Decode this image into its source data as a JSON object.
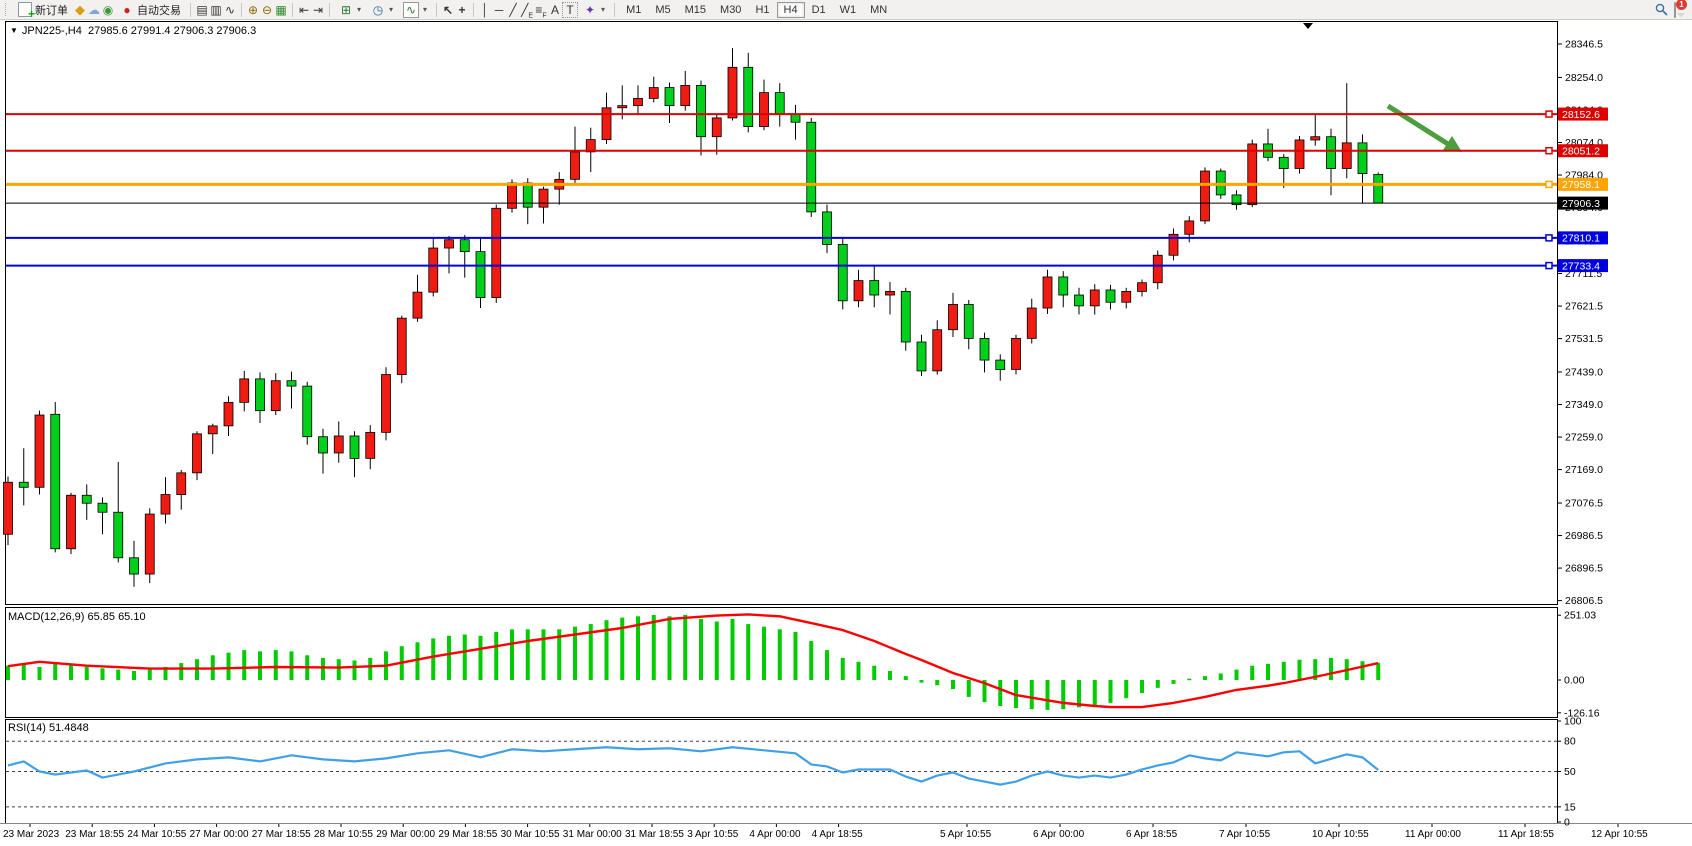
{
  "toolbar": {
    "new_order_label": "新订单",
    "autotrading_label": "自动交易",
    "timeframes": [
      "M1",
      "M5",
      "M15",
      "M30",
      "H1",
      "H4",
      "D1",
      "W1",
      "MN"
    ],
    "active_timeframe": "H4",
    "text_tool_label": "A",
    "label_tool_label": "T",
    "channel_tool_suffix": "E",
    "fibo_tool_suffix": "F",
    "notification_count": "1"
  },
  "chart": {
    "symbol_title": "JPN225-,H4",
    "ohlc_title": "27985.6 27991.4 27906.3 27906.3"
  },
  "indicators": {
    "macd_label": "MACD(12,26,9)",
    "macd_values": "65.85 65.10",
    "rsi_label": "RSI(14)",
    "rsi_value": "51.4848"
  },
  "chart_data": {
    "type": "candlestick",
    "symbol": "JPN225-",
    "period": "H4",
    "current_bar": {
      "open": 27985.6,
      "high": 27991.4,
      "low": 27906.3,
      "close": 27906.3
    },
    "bull_color": "#ee1c12",
    "bear_color": "#00d01c",
    "price_ticks": [
      "28346.5",
      "28254.0",
      "28164.0",
      "28074.0",
      "27984.0",
      "27894.0",
      "27801.5",
      "27711.5",
      "27621.5",
      "27531.5",
      "27439.0",
      "27349.0",
      "27259.0",
      "27169.0",
      "27076.5",
      "26986.5",
      "26896.5",
      "26806.5"
    ],
    "levels": [
      {
        "label": "28152.6",
        "price": 28152.6,
        "color": "#dd0000",
        "width": 2
      },
      {
        "label": "28051.2",
        "price": 28051.2,
        "color": "#dd0000",
        "width": 2
      },
      {
        "label": "27958.1",
        "price": 27958.1,
        "color": "#ffa500",
        "width": 3
      },
      {
        "label": "27906.3",
        "price": 27906.3,
        "color": "#000000",
        "width": 1
      },
      {
        "label": "27810.1",
        "price": 27810.1,
        "color": "#0000dd",
        "width": 2
      },
      {
        "label": "27733.4",
        "price": 27733.4,
        "color": "#0000dd",
        "width": 2
      }
    ],
    "candles": [
      [
        26990,
        27150,
        26960,
        27134
      ],
      [
        27134,
        27228,
        27070,
        27120
      ],
      [
        27120,
        27332,
        27100,
        27320
      ],
      [
        27322,
        27356,
        26940,
        26950
      ],
      [
        26950,
        27105,
        26935,
        27098
      ],
      [
        27098,
        27128,
        27030,
        27076
      ],
      [
        27076,
        27092,
        26990,
        27051
      ],
      [
        27051,
        27190,
        26912,
        26925
      ],
      [
        26925,
        26972,
        26845,
        26880
      ],
      [
        26880,
        27062,
        26855,
        27046
      ],
      [
        27046,
        27148,
        27020,
        27100
      ],
      [
        27100,
        27168,
        27058,
        27160
      ],
      [
        27160,
        27275,
        27140,
        27268
      ],
      [
        27268,
        27296,
        27212,
        27290
      ],
      [
        27290,
        27372,
        27262,
        27355
      ],
      [
        27355,
        27442,
        27330,
        27420
      ],
      [
        27420,
        27438,
        27298,
        27332
      ],
      [
        27332,
        27436,
        27320,
        27415
      ],
      [
        27415,
        27440,
        27338,
        27400
      ],
      [
        27400,
        27412,
        27238,
        27260
      ],
      [
        27260,
        27282,
        27158,
        27215
      ],
      [
        27215,
        27302,
        27188,
        27262
      ],
      [
        27262,
        27275,
        27148,
        27200
      ],
      [
        27200,
        27292,
        27170,
        27272
      ],
      [
        27272,
        27452,
        27250,
        27432
      ],
      [
        27432,
        27595,
        27408,
        27588
      ],
      [
        27588,
        27708,
        27578,
        27660
      ],
      [
        27660,
        27812,
        27648,
        27782
      ],
      [
        27782,
        27815,
        27712,
        27805
      ],
      [
        27805,
        27818,
        27700,
        27772
      ],
      [
        27772,
        27812,
        27616,
        27645
      ],
      [
        27645,
        27902,
        27630,
        27892
      ],
      [
        27892,
        27972,
        27880,
        27962
      ],
      [
        27962,
        27975,
        27848,
        27895
      ],
      [
        27895,
        27952,
        27850,
        27945
      ],
      [
        27945,
        27992,
        27902,
        27972
      ],
      [
        27972,
        28118,
        27958,
        28048
      ],
      [
        28048,
        28115,
        27992,
        28082
      ],
      [
        28082,
        28212,
        28070,
        28170
      ],
      [
        28170,
        28232,
        28138,
        28176
      ],
      [
        28176,
        28232,
        28155,
        28196
      ],
      [
        28196,
        28256,
        28185,
        28226
      ],
      [
        28226,
        28240,
        28128,
        28176
      ],
      [
        28176,
        28272,
        28162,
        28232
      ],
      [
        28232,
        28245,
        28038,
        28090
      ],
      [
        28090,
        28152,
        28040,
        28142
      ],
      [
        28142,
        28335,
        28135,
        28282
      ],
      [
        28282,
        28322,
        28102,
        28118
      ],
      [
        28118,
        28248,
        28108,
        28212
      ],
      [
        28212,
        28238,
        28118,
        28152
      ],
      [
        28152,
        28178,
        28082,
        28130
      ],
      [
        28130,
        28142,
        27868,
        27882
      ],
      [
        27882,
        27902,
        27768,
        27792
      ],
      [
        27792,
        27808,
        27612,
        27636
      ],
      [
        27636,
        27722,
        27618,
        27692
      ],
      [
        27692,
        27732,
        27618,
        27652
      ],
      [
        27652,
        27688,
        27598,
        27662
      ],
      [
        27662,
        27672,
        27498,
        27522
      ],
      [
        27522,
        27542,
        27428,
        27442
      ],
      [
        27442,
        27582,
        27432,
        27556
      ],
      [
        27556,
        27658,
        27536,
        27626
      ],
      [
        27626,
        27638,
        27502,
        27532
      ],
      [
        27532,
        27548,
        27438,
        27472
      ],
      [
        27472,
        27488,
        27415,
        27446
      ],
      [
        27446,
        27542,
        27432,
        27532
      ],
      [
        27532,
        27642,
        27518,
        27616
      ],
      [
        27616,
        27722,
        27600,
        27702
      ],
      [
        27702,
        27718,
        27618,
        27652
      ],
      [
        27652,
        27672,
        27598,
        27622
      ],
      [
        27622,
        27682,
        27598,
        27666
      ],
      [
        27666,
        27680,
        27612,
        27632
      ],
      [
        27632,
        27672,
        27615,
        27662
      ],
      [
        27662,
        27695,
        27648,
        27686
      ],
      [
        27686,
        27775,
        27668,
        27762
      ],
      [
        27762,
        27836,
        27748,
        27820
      ],
      [
        27820,
        27870,
        27798,
        27857
      ],
      [
        27857,
        28005,
        27848,
        27995
      ],
      [
        27995,
        28002,
        27918,
        27929
      ],
      [
        27929,
        27942,
        27888,
        27902
      ],
      [
        27902,
        28082,
        27895,
        28070
      ],
      [
        28070,
        28112,
        28022,
        28033
      ],
      [
        28033,
        28042,
        27948,
        28002
      ],
      [
        28002,
        28092,
        27988,
        28081
      ],
      [
        28081,
        28152,
        28065,
        28090
      ],
      [
        28090,
        28112,
        27928,
        28002
      ],
      [
        28002,
        28238,
        27975,
        28073
      ],
      [
        28073,
        28096,
        27906,
        27988
      ],
      [
        27985.6,
        27991.4,
        27906.3,
        27906.3
      ]
    ],
    "dates": [
      "23 Mar 2023",
      "23 Mar 18:55",
      "24 Mar 10:55",
      "27 Mar 00:00",
      "27 Mar 18:55",
      "28 Mar 10:55",
      "29 Mar 00:00",
      "29 Mar 18:55",
      "30 Mar 10:55",
      "31 Mar 00:00",
      "31 Mar 18:55",
      "3 Apr 10:55",
      "4 Apr 00:00",
      "4 Apr 18:55",
      "5 Apr 10:55",
      "6 Apr 00:00",
      "6 Apr 18:55",
      "7 Apr 10:55",
      "10 Apr 10:55",
      "11 Apr 00:00",
      "11 Apr 18:55",
      "12 Apr 10:55"
    ],
    "macd": {
      "params": "12,26,9",
      "ticks": [
        "251.03",
        "0.00",
        "-126.16"
      ],
      "hist_color": "#00cc00",
      "signal_color": "#ff0000",
      "hist": [
        55,
        60,
        50,
        65,
        60,
        50,
        45,
        40,
        35,
        40,
        50,
        65,
        80,
        95,
        105,
        115,
        110,
        115,
        110,
        95,
        85,
        80,
        75,
        85,
        110,
        130,
        145,
        160,
        170,
        175,
        170,
        185,
        195,
        195,
        195,
        195,
        205,
        215,
        230,
        240,
        245,
        250,
        245,
        250,
        235,
        225,
        235,
        215,
        205,
        195,
        185,
        150,
        115,
        85,
        70,
        55,
        35,
        15,
        -10,
        -20,
        -35,
        -65,
        -85,
        -100,
        -108,
        -112,
        -115,
        -112,
        -105,
        -98,
        -88,
        -70,
        -50,
        -30,
        -15,
        5,
        15,
        25,
        40,
        55,
        62,
        70,
        78,
        80,
        85,
        80,
        72,
        65.85
      ],
      "signal": [
        [
          0,
          53
        ],
        [
          2,
          70
        ],
        [
          5,
          55
        ],
        [
          9,
          44
        ],
        [
          13,
          44
        ],
        [
          17,
          50
        ],
        [
          21,
          48
        ],
        [
          24,
          55
        ],
        [
          27,
          90
        ],
        [
          30,
          120
        ],
        [
          33,
          150
        ],
        [
          36,
          175
        ],
        [
          39,
          200
        ],
        [
          42,
          235
        ],
        [
          45,
          248
        ],
        [
          47,
          252
        ],
        [
          49,
          245
        ],
        [
          51,
          219
        ],
        [
          53,
          192
        ],
        [
          55,
          150
        ],
        [
          57,
          100
        ],
        [
          58,
          77
        ],
        [
          60,
          27
        ],
        [
          62,
          -12
        ],
        [
          64,
          -58
        ],
        [
          66,
          -78
        ],
        [
          67,
          -88
        ],
        [
          69,
          -100
        ],
        [
          70,
          -104
        ],
        [
          72,
          -104
        ],
        [
          74,
          -88
        ],
        [
          76,
          -65
        ],
        [
          78,
          -38
        ],
        [
          80,
          -22
        ],
        [
          81,
          -12
        ],
        [
          83,
          12
        ],
        [
          85,
          38
        ],
        [
          87,
          65.1
        ]
      ]
    },
    "rsi": {
      "period": 14,
      "ticks": [
        "100",
        "80",
        "50",
        "15",
        "0"
      ],
      "dashed_levels": [
        80,
        50,
        15
      ],
      "color": "#3fa0e8",
      "points": [
        [
          0,
          56
        ],
        [
          1,
          60
        ],
        [
          2,
          50
        ],
        [
          3,
          47
        ],
        [
          5,
          51
        ],
        [
          6,
          44
        ],
        [
          8,
          50
        ],
        [
          10,
          58
        ],
        [
          12,
          62
        ],
        [
          14,
          64
        ],
        [
          16,
          60
        ],
        [
          18,
          66
        ],
        [
          20,
          62
        ],
        [
          22,
          60
        ],
        [
          24,
          63
        ],
        [
          26,
          68
        ],
        [
          28,
          71
        ],
        [
          30,
          64
        ],
        [
          32,
          72
        ],
        [
          34,
          70
        ],
        [
          36,
          72
        ],
        [
          38,
          74
        ],
        [
          40,
          72
        ],
        [
          42,
          73
        ],
        [
          44,
          70
        ],
        [
          46,
          74
        ],
        [
          48,
          71
        ],
        [
          50,
          68
        ],
        [
          51,
          57
        ],
        [
          52,
          55
        ],
        [
          53,
          49
        ],
        [
          54,
          52
        ],
        [
          56,
          52
        ],
        [
          57,
          45
        ],
        [
          58,
          40
        ],
        [
          59,
          46
        ],
        [
          60,
          49
        ],
        [
          61,
          43
        ],
        [
          62,
          40
        ],
        [
          63,
          37
        ],
        [
          64,
          40
        ],
        [
          65,
          46
        ],
        [
          66,
          50
        ],
        [
          67,
          46
        ],
        [
          68,
          44
        ],
        [
          69,
          46
        ],
        [
          70,
          44
        ],
        [
          71,
          47
        ],
        [
          72,
          52
        ],
        [
          73,
          56
        ],
        [
          74,
          59
        ],
        [
          75,
          66
        ],
        [
          76,
          63
        ],
        [
          77,
          61
        ],
        [
          78,
          69
        ],
        [
          79,
          67
        ],
        [
          80,
          65
        ],
        [
          81,
          69
        ],
        [
          82,
          70
        ],
        [
          83,
          58
        ],
        [
          85,
          67
        ],
        [
          86,
          64
        ],
        [
          87,
          51.5
        ]
      ]
    },
    "annotation_arrow": {
      "from": [
        1388,
        86
      ],
      "to": [
        1448,
        124
      ],
      "tip": [
        1462,
        132
      ],
      "color": "#4d9e3e"
    }
  }
}
